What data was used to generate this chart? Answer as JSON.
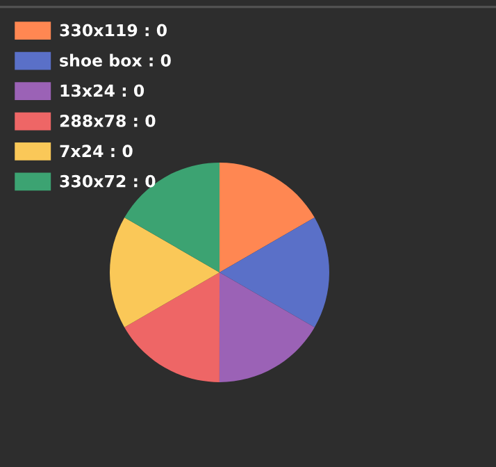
{
  "chart_data": {
    "type": "pie",
    "categories": [
      "330x119 : 0",
      "shoe box : 0",
      "13x24 : 0",
      "288x78 : 0",
      "7x24 : 0",
      "330x72 : 0"
    ],
    "values": [
      16.67,
      16.67,
      16.67,
      16.67,
      16.66,
      16.66
    ],
    "colors": [
      "#ff8752",
      "#5a70c8",
      "#9b62b6",
      "#ee6666",
      "#fac858",
      "#3ca372"
    ],
    "legend": "top left"
  }
}
